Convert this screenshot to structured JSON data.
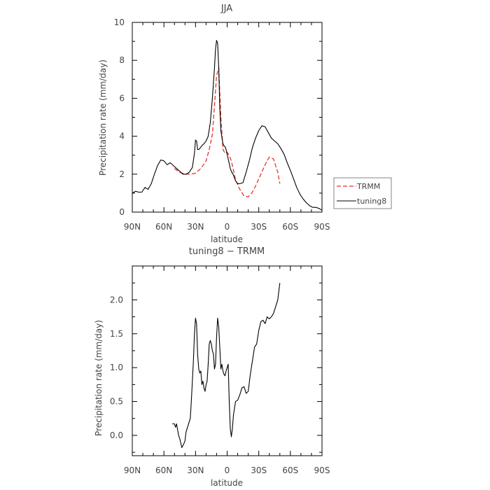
{
  "chart_data": [
    {
      "type": "line",
      "title": "JJA",
      "xlabel": "latitude",
      "ylabel": "Precipitation rate  (mm/day)",
      "xlim": [
        90,
        -90
      ],
      "ylim": [
        0,
        10
      ],
      "xticks": [
        90,
        60,
        30,
        0,
        -30,
        -60,
        -90
      ],
      "xticklabels": [
        "90N",
        "60N",
        "30N",
        "0",
        "30S",
        "60S",
        "90S"
      ],
      "yticks": [
        0,
        2,
        4,
        6,
        8,
        10
      ],
      "yticklabels": [
        "0",
        "2",
        "4",
        "6",
        "8",
        "10"
      ],
      "legend_position": "right",
      "grid": false,
      "series": [
        {
          "name": "TRMM",
          "color": "#e8322a",
          "dash": true,
          "x": [
            50,
            45,
            40,
            35,
            30,
            25,
            20,
            17,
            14,
            12,
            10,
            8,
            6,
            4,
            2,
            0,
            -2,
            -4,
            -6,
            -8,
            -12,
            -16,
            -20,
            -24,
            -28,
            -32,
            -36,
            -40,
            -44,
            -48,
            -50
          ],
          "y": [
            2.3,
            2.1,
            2.0,
            2.0,
            2.05,
            2.3,
            2.7,
            3.3,
            4.1,
            5.6,
            7.2,
            7.6,
            5.0,
            3.3,
            3.1,
            3.15,
            3.0,
            2.7,
            2.2,
            1.7,
            1.2,
            0.85,
            0.8,
            1.05,
            1.5,
            2.0,
            2.5,
            2.9,
            2.8,
            2.1,
            1.5
          ]
        },
        {
          "name": "tuning8",
          "color": "#000000",
          "dash": false,
          "x": [
            90,
            87,
            84,
            81,
            78,
            75,
            72,
            69,
            66,
            63,
            60,
            57,
            54,
            51,
            48,
            45,
            42,
            39,
            36,
            33,
            31,
            30,
            29,
            28,
            27,
            26,
            24,
            22,
            20,
            18,
            16,
            14,
            12,
            11,
            10,
            9,
            8,
            7,
            6,
            5,
            4,
            3,
            2,
            1,
            0,
            -1,
            -2,
            -3,
            -4,
            -6,
            -8,
            -10,
            -12,
            -15,
            -18,
            -21,
            -24,
            -27,
            -30,
            -33,
            -36,
            -39,
            -42,
            -45,
            -48,
            -51,
            -54,
            -57,
            -60,
            -63,
            -66,
            -69,
            -72,
            -75,
            -78,
            -81,
            -84,
            -87,
            -90
          ],
          "y": [
            1.0,
            1.1,
            1.05,
            1.05,
            1.3,
            1.2,
            1.5,
            2.0,
            2.45,
            2.75,
            2.7,
            2.5,
            2.6,
            2.45,
            2.3,
            2.15,
            2.0,
            2.0,
            2.1,
            2.35,
            3.1,
            3.8,
            3.75,
            3.3,
            3.3,
            3.35,
            3.5,
            3.6,
            3.75,
            4.0,
            4.7,
            6.0,
            7.6,
            8.6,
            9.05,
            8.9,
            7.6,
            5.5,
            4.3,
            3.95,
            3.6,
            3.5,
            3.45,
            3.3,
            3.05,
            2.8,
            2.55,
            2.3,
            2.15,
            1.95,
            1.65,
            1.5,
            1.5,
            1.55,
            2.1,
            2.7,
            3.4,
            3.9,
            4.3,
            4.55,
            4.5,
            4.2,
            3.9,
            3.75,
            3.6,
            3.35,
            3.05,
            2.6,
            2.2,
            1.75,
            1.3,
            0.95,
            0.7,
            0.5,
            0.35,
            0.25,
            0.25,
            0.2,
            0.1
          ]
        }
      ]
    },
    {
      "type": "line",
      "title": "tuning8 − TRMM",
      "xlabel": "latitude",
      "ylabel": "Precipitation rate (mm/day)",
      "xlim": [
        90,
        -90
      ],
      "ylim": [
        -0.3,
        2.5
      ],
      "xticks": [
        90,
        60,
        30,
        0,
        -30,
        -60,
        -90
      ],
      "xticklabels": [
        "90N",
        "60N",
        "30N",
        "0",
        "30S",
        "60S",
        "90S"
      ],
      "yticks": [
        0.0,
        0.5,
        1.0,
        1.5,
        2.0
      ],
      "yticklabels": [
        "0.0",
        "0.5",
        "1.0",
        "1.5",
        "2.0"
      ],
      "grid": false,
      "series": [
        {
          "color": "#000000",
          "x": [
            52,
            50,
            49,
            48,
            46,
            45,
            43,
            41,
            40,
            39,
            37,
            35,
            34,
            32,
            31,
            30,
            29,
            28,
            27,
            26,
            25,
            24,
            23,
            22,
            21,
            20,
            19,
            18,
            17,
            16,
            15,
            14,
            13,
            12,
            11,
            10,
            9,
            8,
            7,
            6,
            5,
            4,
            3,
            2,
            1,
            0,
            -1,
            -2,
            -3,
            -4,
            -5,
            -6,
            -8,
            -10,
            -12,
            -14,
            -16,
            -18,
            -20,
            -22,
            -24,
            -26,
            -28,
            -30,
            -32,
            -34,
            -36,
            -38,
            -40,
            -42,
            -44,
            -46,
            -48,
            -50
          ],
          "y": [
            0.17,
            0.17,
            0.12,
            0.17,
            0.0,
            -0.05,
            -0.18,
            -0.12,
            -0.08,
            0.05,
            0.15,
            0.25,
            0.5,
            1.1,
            1.5,
            1.73,
            1.65,
            1.2,
            0.98,
            0.92,
            0.95,
            0.75,
            0.8,
            0.7,
            0.65,
            0.75,
            0.8,
            1.05,
            1.35,
            1.4,
            1.35,
            1.25,
            1.2,
            0.98,
            1.05,
            1.45,
            1.73,
            1.6,
            1.3,
            0.98,
            1.05,
            0.95,
            0.9,
            0.88,
            0.95,
            1.0,
            1.05,
            0.5,
            0.1,
            -0.02,
            0.1,
            0.3,
            0.5,
            0.52,
            0.6,
            0.7,
            0.72,
            0.62,
            0.65,
            0.9,
            1.1,
            1.3,
            1.35,
            1.55,
            1.68,
            1.7,
            1.65,
            1.75,
            1.72,
            1.75,
            1.8,
            1.9,
            2.0,
            2.25
          ]
        }
      ]
    }
  ]
}
